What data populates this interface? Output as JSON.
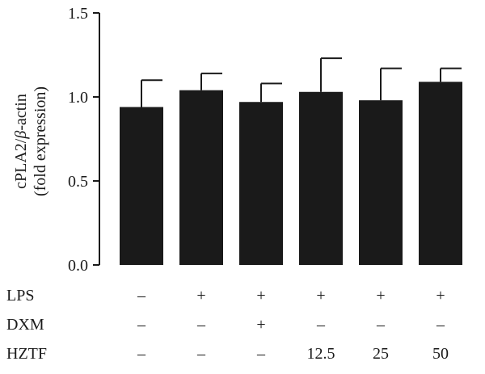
{
  "chart_data": {
    "type": "bar",
    "ylabel_line1_prefix": "cPLA2/",
    "ylabel_line1_greek": "β",
    "ylabel_line1_suffix": "-actin",
    "ylabel_line2": "(fold expression)",
    "ylim": [
      0,
      1.5
    ],
    "yticks": [
      {
        "value": 0.0,
        "label": "0.0"
      },
      {
        "value": 0.5,
        "label": "0.5"
      },
      {
        "value": 1.0,
        "label": "1.0"
      },
      {
        "value": 1.5,
        "label": "1.5"
      }
    ],
    "values": [
      0.94,
      1.04,
      0.97,
      1.03,
      0.98,
      1.09
    ],
    "errors": [
      0.16,
      0.1,
      0.11,
      0.2,
      0.19,
      0.08
    ],
    "bar_color": "#1a1a1a",
    "conditions": [
      {
        "name": "LPS",
        "values": [
          "–",
          "+",
          "+",
          "+",
          "+",
          "+"
        ]
      },
      {
        "name": "DXM",
        "values": [
          "–",
          "–",
          "+",
          "–",
          "–",
          "–"
        ]
      },
      {
        "name": "HZTF",
        "values": [
          "–",
          "–",
          "–",
          "12.5",
          "25",
          "50"
        ]
      }
    ]
  }
}
